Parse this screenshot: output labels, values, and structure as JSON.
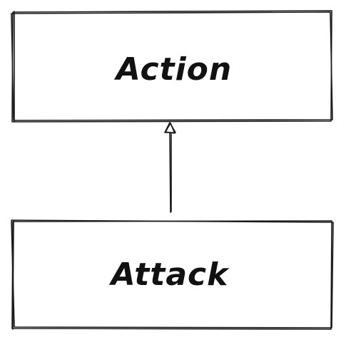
{
  "diagram": {
    "nodes": [
      {
        "id": "action",
        "label": "Action"
      },
      {
        "id": "attack",
        "label": "Attack"
      }
    ],
    "edges": [
      {
        "from": "attack",
        "to": "action",
        "arrowhead": "hollow-triangle"
      }
    ]
  },
  "colors": {
    "stroke": "#1a1a1a",
    "text": "#111111",
    "background": "#ffffff"
  }
}
